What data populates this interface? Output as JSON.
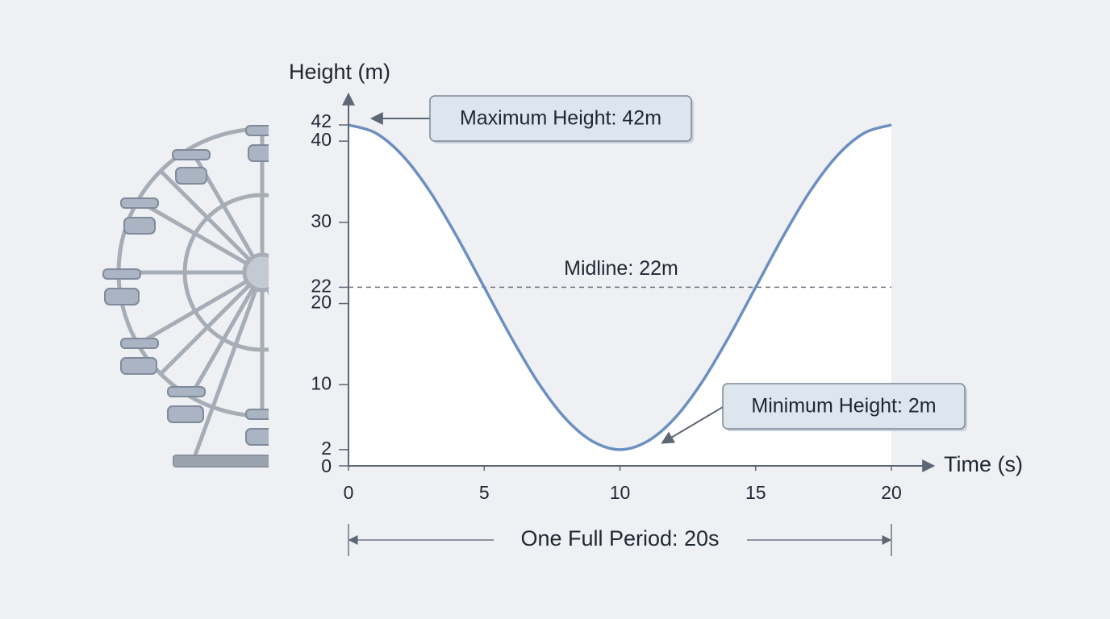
{
  "chart_data": {
    "type": "line",
    "y_label": "Height (m)",
    "x_label": "Time (s)",
    "x": [
      0,
      1,
      2,
      3,
      4,
      5,
      6,
      7,
      8,
      9,
      10,
      11,
      12,
      13,
      14,
      15,
      16,
      17,
      18,
      19,
      20
    ],
    "values": [
      42,
      41.0,
      38.2,
      33.8,
      28.2,
      22,
      15.8,
      10.2,
      5.8,
      3.0,
      2,
      3.0,
      5.8,
      10.2,
      15.8,
      22,
      28.2,
      33.8,
      38.2,
      41.0,
      42
    ],
    "color": "#6b8fc0",
    "xlim": [
      0,
      20
    ],
    "xticks": [
      0,
      5,
      10,
      15,
      20
    ],
    "ylim": [
      0,
      42
    ],
    "yticks": [
      0,
      2,
      10,
      20,
      22,
      30,
      40,
      42
    ],
    "midline": 22,
    "max_label": "Maximum Height: 42m",
    "min_label": "Minimum Height: 2m",
    "midline_label": "Midline: 22m",
    "period_label": "One Full Period: 20s"
  }
}
